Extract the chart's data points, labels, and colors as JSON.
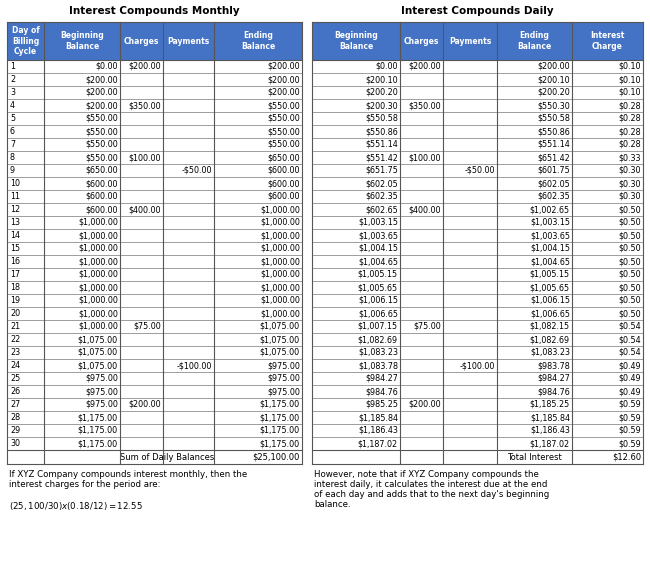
{
  "title_monthly": "Interest Compounds Monthly",
  "title_daily": "Interest Compounds Daily",
  "headers_monthly": [
    "Day of\nBilling\nCycle",
    "Beginning\nBalance",
    "Charges",
    "Payments",
    "Ending\nBalance"
  ],
  "headers_daily": [
    "Beginning\nBalance",
    "Charges",
    "Payments",
    "Ending\nBalance",
    "Interest\nCharge"
  ],
  "header_bg": "#4472C4",
  "header_fg": "#FFFFFF",
  "monthly_data": [
    [
      "1",
      "$0.00",
      "$200.00",
      "",
      "$200.00"
    ],
    [
      "2",
      "$200.00",
      "",
      "",
      "$200.00"
    ],
    [
      "3",
      "$200.00",
      "",
      "",
      "$200.00"
    ],
    [
      "4",
      "$200.00",
      "$350.00",
      "",
      "$550.00"
    ],
    [
      "5",
      "$550.00",
      "",
      "",
      "$550.00"
    ],
    [
      "6",
      "$550.00",
      "",
      "",
      "$550.00"
    ],
    [
      "7",
      "$550.00",
      "",
      "",
      "$550.00"
    ],
    [
      "8",
      "$550.00",
      "$100.00",
      "",
      "$650.00"
    ],
    [
      "9",
      "$650.00",
      "",
      "-$50.00",
      "$600.00"
    ],
    [
      "10",
      "$600.00",
      "",
      "",
      "$600.00"
    ],
    [
      "11",
      "$600.00",
      "",
      "",
      "$600.00"
    ],
    [
      "12",
      "$600.00",
      "$400.00",
      "",
      "$1,000.00"
    ],
    [
      "13",
      "$1,000.00",
      "",
      "",
      "$1,000.00"
    ],
    [
      "14",
      "$1,000.00",
      "",
      "",
      "$1,000.00"
    ],
    [
      "15",
      "$1,000.00",
      "",
      "",
      "$1,000.00"
    ],
    [
      "16",
      "$1,000.00",
      "",
      "",
      "$1,000.00"
    ],
    [
      "17",
      "$1,000.00",
      "",
      "",
      "$1,000.00"
    ],
    [
      "18",
      "$1,000.00",
      "",
      "",
      "$1,000.00"
    ],
    [
      "19",
      "$1,000.00",
      "",
      "",
      "$1,000.00"
    ],
    [
      "20",
      "$1,000.00",
      "",
      "",
      "$1,000.00"
    ],
    [
      "21",
      "$1,000.00",
      "$75.00",
      "",
      "$1,075.00"
    ],
    [
      "22",
      "$1,075.00",
      "",
      "",
      "$1,075.00"
    ],
    [
      "23",
      "$1,075.00",
      "",
      "",
      "$1,075.00"
    ],
    [
      "24",
      "$1,075.00",
      "",
      "-$100.00",
      "$975.00"
    ],
    [
      "25",
      "$975.00",
      "",
      "",
      "$975.00"
    ],
    [
      "26",
      "$975.00",
      "",
      "",
      "$975.00"
    ],
    [
      "27",
      "$975.00",
      "$200.00",
      "",
      "$1,175.00"
    ],
    [
      "28",
      "$1,175.00",
      "",
      "",
      "$1,175.00"
    ],
    [
      "29",
      "$1,175.00",
      "",
      "",
      "$1,175.00"
    ],
    [
      "30",
      "$1,175.00",
      "",
      "",
      "$1,175.00"
    ]
  ],
  "daily_data": [
    [
      "$0.00",
      "$200.00",
      "",
      "$200.00",
      "$0.10"
    ],
    [
      "$200.10",
      "",
      "",
      "$200.10",
      "$0.10"
    ],
    [
      "$200.20",
      "",
      "",
      "$200.20",
      "$0.10"
    ],
    [
      "$200.30",
      "$350.00",
      "",
      "$550.30",
      "$0.28"
    ],
    [
      "$550.58",
      "",
      "",
      "$550.58",
      "$0.28"
    ],
    [
      "$550.86",
      "",
      "",
      "$550.86",
      "$0.28"
    ],
    [
      "$551.14",
      "",
      "",
      "$551.14",
      "$0.28"
    ],
    [
      "$551.42",
      "$100.00",
      "",
      "$651.42",
      "$0.33"
    ],
    [
      "$651.75",
      "",
      "-$50.00",
      "$601.75",
      "$0.30"
    ],
    [
      "$602.05",
      "",
      "",
      "$602.05",
      "$0.30"
    ],
    [
      "$602.35",
      "",
      "",
      "$602.35",
      "$0.30"
    ],
    [
      "$602.65",
      "$400.00",
      "",
      "$1,002.65",
      "$0.50"
    ],
    [
      "$1,003.15",
      "",
      "",
      "$1,003.15",
      "$0.50"
    ],
    [
      "$1,003.65",
      "",
      "",
      "$1,003.65",
      "$0.50"
    ],
    [
      "$1,004.15",
      "",
      "",
      "$1,004.15",
      "$0.50"
    ],
    [
      "$1,004.65",
      "",
      "",
      "$1,004.65",
      "$0.50"
    ],
    [
      "$1,005.15",
      "",
      "",
      "$1,005.15",
      "$0.50"
    ],
    [
      "$1,005.65",
      "",
      "",
      "$1,005.65",
      "$0.50"
    ],
    [
      "$1,006.15",
      "",
      "",
      "$1,006.15",
      "$0.50"
    ],
    [
      "$1,006.65",
      "",
      "",
      "$1,006.65",
      "$0.50"
    ],
    [
      "$1,007.15",
      "$75.00",
      "",
      "$1,082.15",
      "$0.54"
    ],
    [
      "$1,082.69",
      "",
      "",
      "$1,082.69",
      "$0.54"
    ],
    [
      "$1,083.23",
      "",
      "",
      "$1,083.23",
      "$0.54"
    ],
    [
      "$1,083.78",
      "",
      "-$100.00",
      "$983.78",
      "$0.49"
    ],
    [
      "$984.27",
      "",
      "",
      "$984.27",
      "$0.49"
    ],
    [
      "$984.76",
      "",
      "",
      "$984.76",
      "$0.49"
    ],
    [
      "$985.25",
      "$200.00",
      "",
      "$1,185.25",
      "$0.59"
    ],
    [
      "$1,185.84",
      "",
      "",
      "$1,185.84",
      "$0.59"
    ],
    [
      "$1,186.43",
      "",
      "",
      "$1,186.43",
      "$0.59"
    ],
    [
      "$1,187.02",
      "",
      "",
      "$1,187.02",
      "$0.59"
    ]
  ],
  "footer_monthly_label": "Sum of Daily Balances",
  "footer_monthly_value": "$25,100.00",
  "footer_daily_label": "Total Interest",
  "footer_daily_value": "$12.60",
  "note_monthly_line1": "If XYZ Company compounds interest monthly, then the",
  "note_monthly_line2": "interest charges for the period are:",
  "note_monthly_line3": "",
  "note_monthly_line4": "($25,100/30) x (0.18/12) = $12.55",
  "note_daily_line1": "However, note that if XYZ Company compounds the",
  "note_daily_line2": "interest daily, it calculates the interest due at the end",
  "note_daily_line3": "of each day and adds that to the next day's beginning",
  "note_daily_line4": "balance."
}
